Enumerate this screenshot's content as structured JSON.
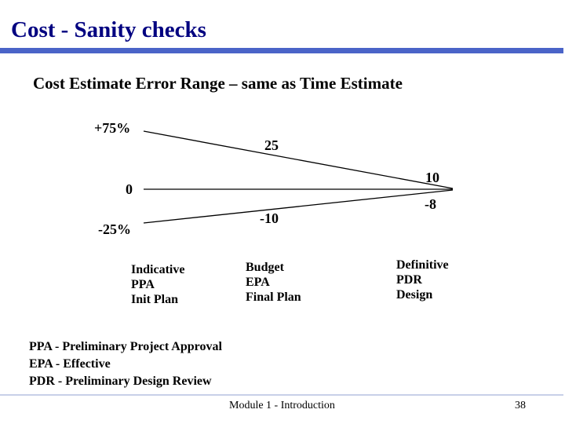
{
  "slide": {
    "title": "Cost - Sanity checks",
    "subtitle": "Cost Estimate Error Range – same as Time Estimate",
    "footer": "Module 1 - Introduction",
    "page_number": "38"
  },
  "diagram": {
    "axis_labels": {
      "top": "+75%",
      "middle": "0",
      "bottom": "-25%"
    },
    "value_labels": {
      "upper_mid": "25",
      "upper_end": "10",
      "lower_mid": "-10",
      "lower_end": "-8"
    },
    "stages": [
      {
        "lines": [
          "Indicative",
          "PPA",
          "Init Plan"
        ]
      },
      {
        "lines": [
          "Budget",
          "EPA",
          "Final Plan"
        ]
      },
      {
        "lines": [
          "Definitive",
          "PDR",
          "Design"
        ]
      }
    ]
  },
  "legend": [
    "PPA - Preliminary Project Approval",
    "EPA - Effective",
    "PDR - Preliminary Design Review"
  ]
}
